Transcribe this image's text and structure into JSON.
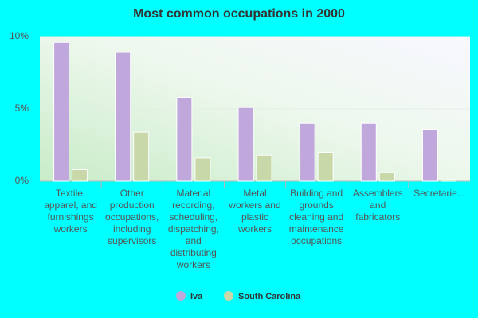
{
  "chart_data": {
    "type": "bar",
    "title": "Most common occupations in 2000",
    "categories": [
      "Textile, apparel, and furnishings workers",
      "Other production occupations, including supervisors",
      "Material recording, scheduling, dispatching, and distributing workers",
      "Metal workers and plastic workers",
      "Building and grounds cleaning and maintenance occupations",
      "Assemblers and fabricators",
      "Secretarie..."
    ],
    "series": [
      {
        "name": "Iva",
        "color": "#c0a8dc",
        "values": [
          9.6,
          8.9,
          5.8,
          5.1,
          4.0,
          4.0,
          3.6
        ]
      },
      {
        "name": "South Carolina",
        "color": "#c8d8a8",
        "values": [
          0.8,
          3.4,
          1.6,
          1.8,
          2.0,
          0.6,
          0.1
        ]
      }
    ],
    "ylim": [
      0,
      10
    ],
    "yticks": [
      {
        "value": 0,
        "label": "0%"
      },
      {
        "value": 5,
        "label": "5%"
      },
      {
        "value": 10,
        "label": "10%"
      }
    ],
    "grid": true
  }
}
